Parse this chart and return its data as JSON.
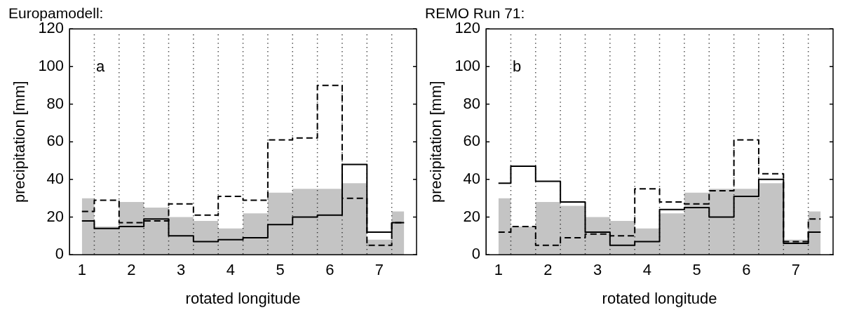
{
  "chart_data": [
    {
      "type": "step",
      "title": "Europamodell:",
      "xlabel": "rotated longitude",
      "ylabel": "precipitation [mm]",
      "annotations": [
        "a"
      ],
      "x": [
        1,
        1.5,
        2,
        2.5,
        3,
        3.5,
        4,
        4.5,
        5,
        5.5,
        6,
        6.5,
        7,
        7.5
      ],
      "series": [
        {
          "type": "area",
          "color": "#c4c4c4",
          "values": [
            30,
            15,
            28,
            25,
            20,
            18,
            14,
            22,
            33,
            35,
            35,
            38,
            8,
            23
          ]
        },
        {
          "type": "step",
          "color": "#000000",
          "line_style": "solid",
          "values": [
            18,
            14,
            15,
            19,
            10,
            7,
            8,
            9,
            16,
            20,
            21,
            48,
            12,
            17
          ]
        },
        {
          "type": "step",
          "color": "#000000",
          "line_style": "dashed",
          "values": [
            23,
            29,
            17,
            18,
            27,
            21,
            31,
            29,
            61,
            62,
            90,
            30,
            5,
            17
          ]
        }
      ],
      "xlim": [
        0.75,
        7.75
      ],
      "xticks": [
        1,
        2,
        3,
        4,
        5,
        6,
        7
      ],
      "ylim": [
        0,
        120
      ],
      "yticks": [
        0,
        20,
        40,
        60,
        80,
        100,
        120
      ],
      "legend": false,
      "grid": false,
      "ref_lines": [
        {
          "axis": "x",
          "value": 1.25,
          "color": "#000000",
          "line_style": "dotted"
        },
        {
          "axis": "x",
          "value": 1.75,
          "color": "#000000",
          "line_style": "dotted"
        },
        {
          "axis": "x",
          "value": 2.25,
          "color": "#000000",
          "line_style": "dotted"
        },
        {
          "axis": "x",
          "value": 2.75,
          "color": "#000000",
          "line_style": "dotted"
        },
        {
          "axis": "x",
          "value": 3.25,
          "color": "#000000",
          "line_style": "dotted"
        },
        {
          "axis": "x",
          "value": 3.75,
          "color": "#000000",
          "line_style": "dotted"
        },
        {
          "axis": "x",
          "value": 4.25,
          "color": "#000000",
          "line_style": "dotted"
        },
        {
          "axis": "x",
          "value": 4.75,
          "color": "#000000",
          "line_style": "dotted"
        },
        {
          "axis": "x",
          "value": 5.25,
          "color": "#000000",
          "line_style": "dotted"
        },
        {
          "axis": "x",
          "value": 5.75,
          "color": "#000000",
          "line_style": "dotted"
        },
        {
          "axis": "x",
          "value": 6.25,
          "color": "#000000",
          "line_style": "dotted"
        },
        {
          "axis": "x",
          "value": 6.75,
          "color": "#000000",
          "line_style": "dotted"
        },
        {
          "axis": "x",
          "value": 7.25,
          "color": "#000000",
          "line_style": "dotted"
        }
      ]
    },
    {
      "type": "step",
      "title": "REMO Run 71:",
      "xlabel": "rotated longitude",
      "ylabel": "precipitation [mm]",
      "annotations": [
        "b"
      ],
      "x": [
        1,
        1.5,
        2,
        2.5,
        3,
        3.5,
        4,
        4.5,
        5,
        5.5,
        6,
        6.5,
        7,
        7.5
      ],
      "series": [
        {
          "type": "area",
          "color": "#c4c4c4",
          "values": [
            30,
            15,
            28,
            26,
            20,
            18,
            14,
            22,
            33,
            35,
            35,
            38,
            8,
            23
          ]
        },
        {
          "type": "step",
          "color": "#000000",
          "line_style": "solid",
          "values": [
            38,
            47,
            39,
            28,
            12,
            5,
            7,
            24,
            25,
            20,
            31,
            40,
            6,
            12
          ]
        },
        {
          "type": "step",
          "color": "#000000",
          "line_style": "dashed",
          "values": [
            12,
            15,
            5,
            9,
            11,
            10,
            35,
            28,
            27,
            34,
            61,
            43,
            7,
            19
          ]
        }
      ],
      "xlim": [
        0.75,
        7.75
      ],
      "xticks": [
        1,
        2,
        3,
        4,
        5,
        6,
        7
      ],
      "ylim": [
        0,
        120
      ],
      "yticks": [
        0,
        20,
        40,
        60,
        80,
        100,
        120
      ],
      "legend": false,
      "grid": false,
      "ref_lines": [
        {
          "axis": "x",
          "value": 1.25,
          "color": "#000000",
          "line_style": "dotted"
        },
        {
          "axis": "x",
          "value": 1.75,
          "color": "#000000",
          "line_style": "dotted"
        },
        {
          "axis": "x",
          "value": 2.25,
          "color": "#000000",
          "line_style": "dotted"
        },
        {
          "axis": "x",
          "value": 2.75,
          "color": "#000000",
          "line_style": "dotted"
        },
        {
          "axis": "x",
          "value": 3.25,
          "color": "#000000",
          "line_style": "dotted"
        },
        {
          "axis": "x",
          "value": 3.75,
          "color": "#000000",
          "line_style": "dotted"
        },
        {
          "axis": "x",
          "value": 4.25,
          "color": "#000000",
          "line_style": "dotted"
        },
        {
          "axis": "x",
          "value": 4.75,
          "color": "#000000",
          "line_style": "dotted"
        },
        {
          "axis": "x",
          "value": 5.25,
          "color": "#000000",
          "line_style": "dotted"
        },
        {
          "axis": "x",
          "value": 5.75,
          "color": "#000000",
          "line_style": "dotted"
        },
        {
          "axis": "x",
          "value": 6.25,
          "color": "#000000",
          "line_style": "dotted"
        },
        {
          "axis": "x",
          "value": 6.75,
          "color": "#000000",
          "line_style": "dotted"
        },
        {
          "axis": "x",
          "value": 7.25,
          "color": "#000000",
          "line_style": "dotted"
        }
      ]
    }
  ]
}
